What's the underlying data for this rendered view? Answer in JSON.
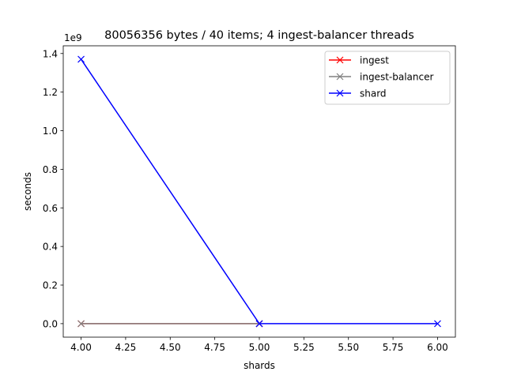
{
  "chart_data": {
    "type": "line",
    "title": "80056356 bytes / 40 items; 4 ingest-balancer threads",
    "xlabel": "shards",
    "ylabel": "seconds",
    "y_offset_label": "1e9",
    "xlim": [
      3.9,
      6.1
    ],
    "ylim": [
      -70000000,
      1440000000
    ],
    "xticks": [
      4.0,
      4.25,
      4.5,
      4.75,
      5.0,
      5.25,
      5.5,
      5.75,
      6.0
    ],
    "xtick_labels": [
      "4.00",
      "4.25",
      "4.50",
      "4.75",
      "5.00",
      "5.25",
      "5.50",
      "5.75",
      "6.00"
    ],
    "yticks": [
      0,
      200000000,
      400000000,
      600000000,
      800000000,
      1000000000,
      1200000000,
      1400000000
    ],
    "ytick_labels": [
      "0.0",
      "0.2",
      "0.4",
      "0.6",
      "0.8",
      "1.0",
      "1.2",
      "1.4"
    ],
    "marker": "x",
    "grid": false,
    "legend_position": "upper right",
    "series": [
      {
        "name": "ingest",
        "color": "#ff0000",
        "x": [
          4,
          5
        ],
        "y": [
          0,
          0
        ]
      },
      {
        "name": "ingest-balancer",
        "color": "#808080",
        "x": [
          4,
          5
        ],
        "y": [
          0,
          0
        ]
      },
      {
        "name": "shard",
        "color": "#0000ff",
        "x": [
          4,
          5,
          6
        ],
        "y": [
          1370000000,
          0,
          0
        ]
      }
    ]
  }
}
